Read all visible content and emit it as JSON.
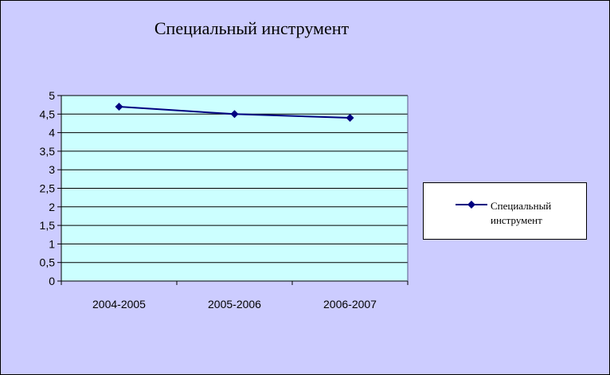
{
  "colors": {
    "background": "#ccccff",
    "plot_area": "#ccffff",
    "series_line": "#000080",
    "legend_box": "#ffffff"
  },
  "chart_data": {
    "type": "line",
    "title": "Специальный инструмент",
    "xlabel": "",
    "ylabel": "",
    "categories": [
      "2004-2005",
      "2005-2006",
      "2006-2007"
    ],
    "series": [
      {
        "name": "Специальный инструмент",
        "values": [
          4.7,
          4.5,
          4.4
        ],
        "marker": "diamond"
      }
    ],
    "ylim": [
      0,
      5
    ],
    "yticks": [
      "0",
      "0,5",
      "1",
      "1,5",
      "2",
      "2,5",
      "3",
      "3,5",
      "4",
      "4,5",
      "5"
    ],
    "grid": true,
    "legend_position": "right"
  }
}
